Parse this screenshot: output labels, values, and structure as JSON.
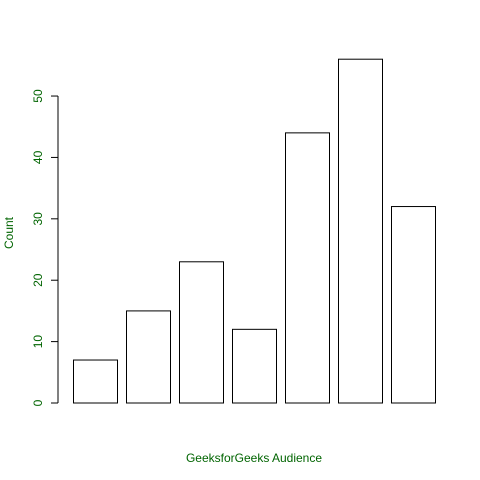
{
  "chart_data": {
    "type": "bar",
    "xlabel": "GeeksforGeeks Audience",
    "ylabel": "Count",
    "categories": [
      null,
      null,
      null,
      null,
      null,
      null,
      null
    ],
    "values": [
      7,
      15,
      23,
      12,
      44,
      56,
      32
    ],
    "color": "#ffffff",
    "edgecolor": "#000000",
    "label_color": "#006400",
    "ylim": [
      0,
      56
    ],
    "yticks": [
      0,
      10,
      20,
      30,
      40,
      50
    ],
    "grid": false
  }
}
